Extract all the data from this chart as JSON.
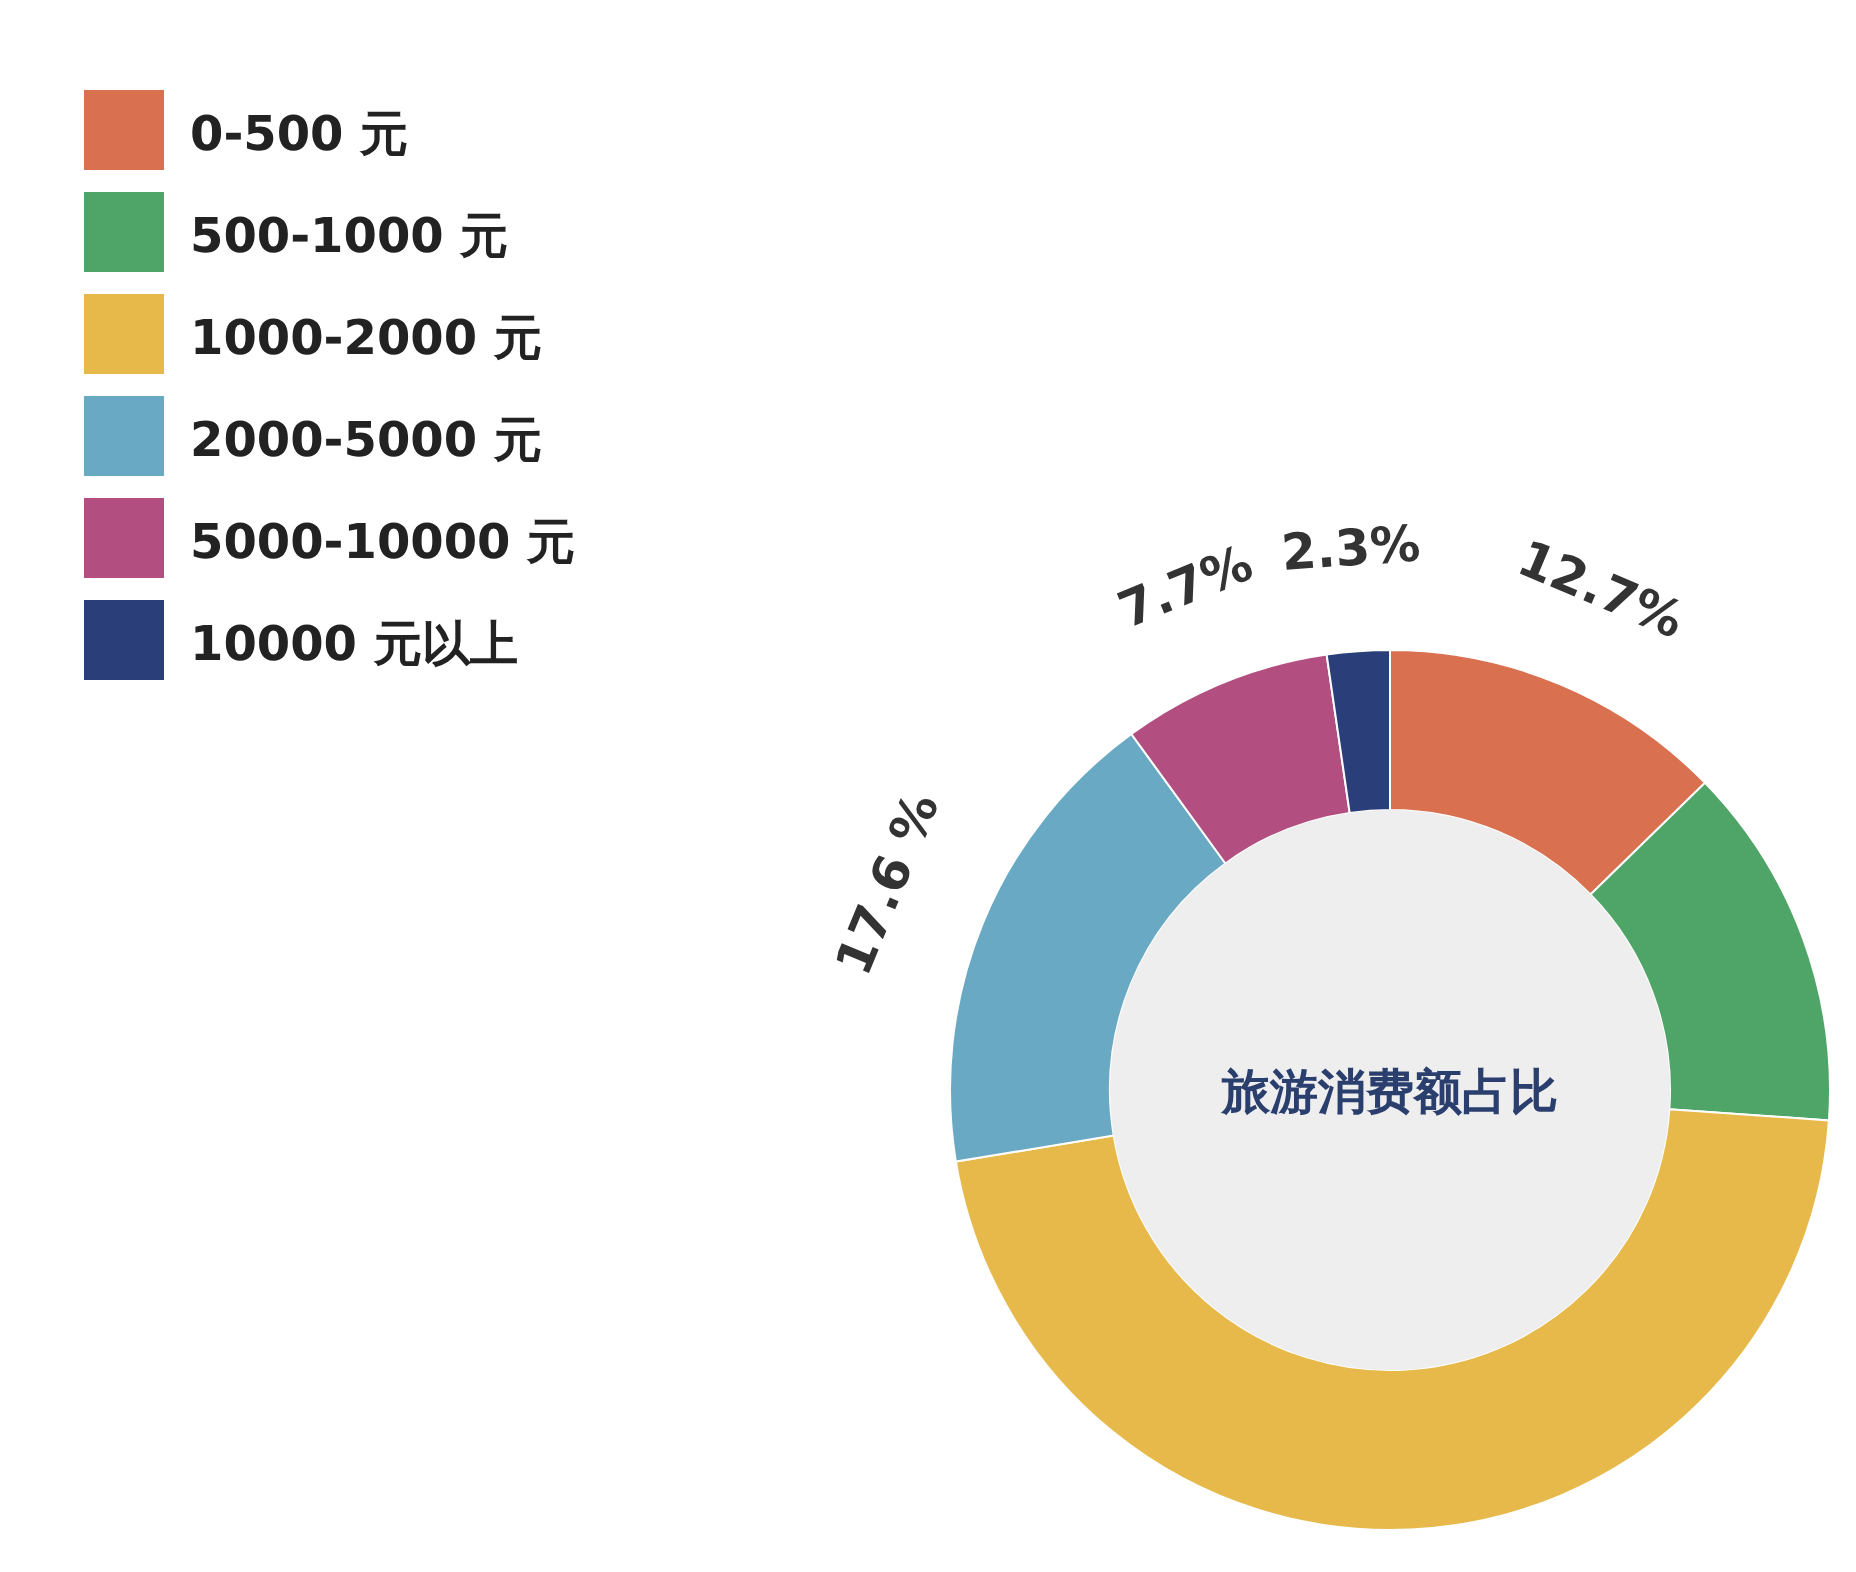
{
  "chart_data": {
    "type": "donut",
    "title": "旅游消费额占比",
    "categories": [
      "0-500 元",
      "500-1000 元",
      "1000-2000 元",
      "2000-5000 元",
      "5000-10000 元",
      "10000 元以上"
    ],
    "values": [
      12.7,
      13.4,
      46.3,
      17.6,
      7.7,
      2.3
    ],
    "colors": [
      "#d9704f",
      "#4fa567",
      "#e6b94a",
      "#6aa9c3",
      "#b24f80",
      "#2a3f7a"
    ],
    "value_labels": [
      "12.7%",
      null,
      null,
      "17.6 %",
      "7.7%",
      "2.3%"
    ],
    "legend": "top left"
  }
}
